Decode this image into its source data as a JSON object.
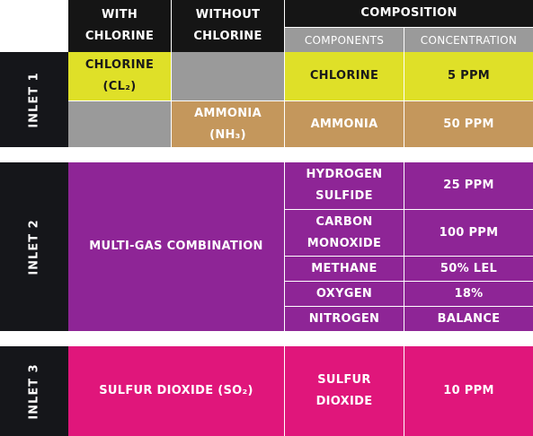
{
  "header": {
    "with_chlorine": "WITH\nCHLORINE",
    "without_chlorine": "WITHOUT\nCHLORINE",
    "composition": "COMPOSITION",
    "components": "COMPONENTS",
    "concentration": "CONCENTRATION"
  },
  "inlet1": {
    "label": "INLET 1",
    "rows": [
      {
        "with": "CHLORINE\n(CL₂)",
        "without": "",
        "component": "CHLORINE",
        "concentration": "5 PPM"
      },
      {
        "with": "",
        "without": "AMMONIA\n(NH₃)",
        "component": "AMMONIA",
        "concentration": "50 PPM"
      }
    ]
  },
  "inlet2": {
    "label": "INLET 2",
    "combined": "MULTI-GAS COMBINATION",
    "rows": [
      {
        "component": "HYDROGEN\nSULFIDE",
        "concentration": "25 PPM"
      },
      {
        "component": "CARBON\nMONOXIDE",
        "concentration": "100 PPM"
      },
      {
        "component": "METHANE",
        "concentration": "50% LEL"
      },
      {
        "component": "OXYGEN",
        "concentration": "18%"
      },
      {
        "component": "NITROGEN",
        "concentration": "BALANCE"
      }
    ]
  },
  "inlet3": {
    "label": "INLET 3",
    "combined": "SULFUR DIOXIDE (SO₂)",
    "rows": [
      {
        "component": "SULFUR\nDIOXIDE",
        "concentration": "10 PPM"
      }
    ]
  },
  "colors": {
    "header": "#151515",
    "grey": "#9a9a9a",
    "chlorine_yellow": "#dfe028",
    "ammonia_tan": "#c4975c",
    "inlet2_purple": "#8e2596",
    "inlet3_magenta": "#e0167b",
    "inlet_label": "#15161a"
  }
}
